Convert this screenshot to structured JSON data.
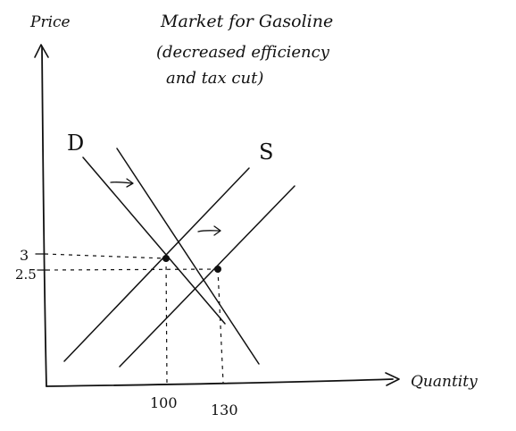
{
  "title": {
    "line1": "Market for Gasoline",
    "line2": "(decreased efficiency",
    "line3": "and  tax cut)"
  },
  "axes": {
    "y_label": "Price",
    "x_label": "Quantity"
  },
  "curves": {
    "demand_label": "D",
    "supply_label": "S"
  },
  "ticks": {
    "price_high": "3",
    "price_low": "2.5",
    "qty_low": "100",
    "qty_high": "130"
  },
  "equilibria": [
    {
      "price": 3,
      "quantity": 100
    },
    {
      "price": 2.5,
      "quantity": 130
    }
  ],
  "shifts": {
    "demand": "right",
    "supply": "right"
  },
  "colors": {
    "ink": "#111111",
    "background": "#ffffff"
  }
}
